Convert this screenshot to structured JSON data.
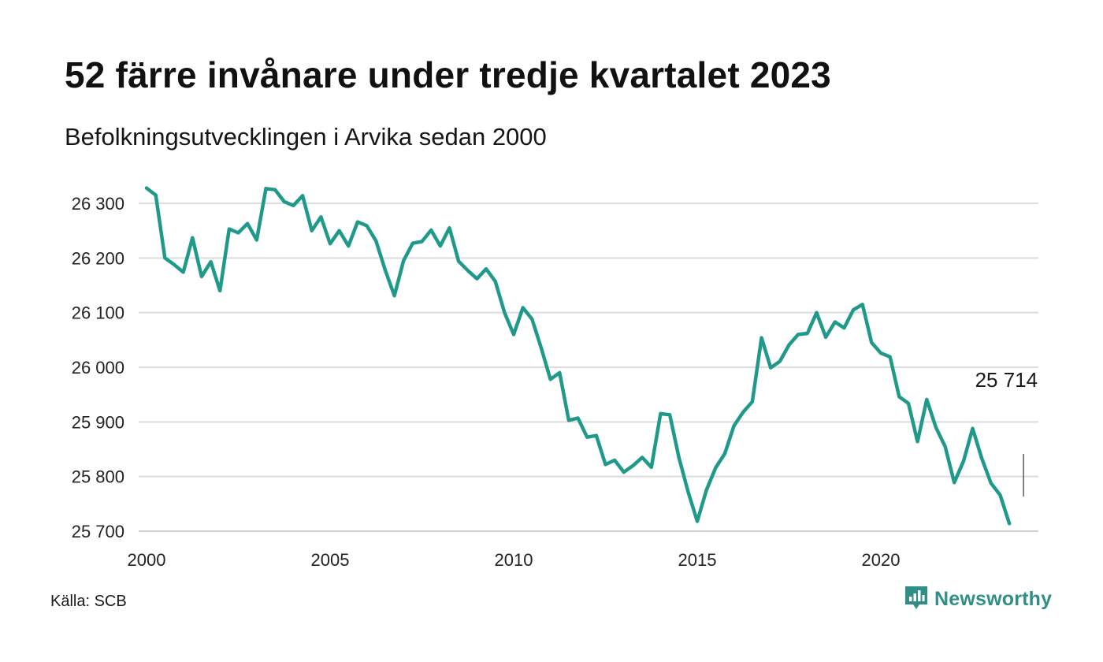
{
  "header": {
    "title": "52 färre invånare under tredje kvartalet 2023",
    "subtitle": "Befolkningsutvecklingen i Arvika sedan 2000"
  },
  "footer": {
    "source": "Källa: SCB",
    "brand": "Newsworthy",
    "brand_icon": "newsworthy-logo-icon"
  },
  "colors": {
    "line": "#1f9a8a",
    "grid": "#dcdcdc",
    "brand": "#2f8f87",
    "text": "#111111"
  },
  "chart_data": {
    "type": "line",
    "title": "52 färre invånare under tredje kvartalet 2023",
    "subtitle": "Befolkningsutvecklingen i Arvika sedan 2000",
    "xlabel": "",
    "ylabel": "",
    "x_ticks": [
      "2000",
      "2005",
      "2010",
      "2015",
      "2020"
    ],
    "x_tick_values": [
      2000,
      2005,
      2010,
      2015,
      2020
    ],
    "y_ticks": [
      "25 700",
      "25 800",
      "25 900",
      "26 000",
      "26 100",
      "26 200",
      "26 300"
    ],
    "y_tick_values": [
      25700,
      25800,
      25900,
      26000,
      26100,
      26200,
      26300
    ],
    "ylim": [
      25700,
      26300
    ],
    "xlim": [
      2000,
      2024
    ],
    "grid": "horizontal",
    "legend": "none",
    "last_value_label": "25 714",
    "series": [
      {
        "x": [
          2000.0,
          2000.25,
          2000.5,
          2000.75,
          2001.0,
          2001.25,
          2001.5,
          2001.75,
          2002.0,
          2002.25,
          2002.5,
          2002.75,
          2003.0,
          2003.25,
          2003.5,
          2003.75,
          2004.0,
          2004.25,
          2004.5,
          2004.75,
          2005.0,
          2005.25,
          2005.5,
          2005.75,
          2006.0,
          2006.25,
          2006.5,
          2006.75,
          2007.0,
          2007.25,
          2007.5,
          2007.75,
          2008.0,
          2008.25,
          2008.5,
          2008.75,
          2009.0,
          2009.25,
          2009.5,
          2009.75,
          2010.0,
          2010.25,
          2010.5,
          2010.75,
          2011.0,
          2011.25,
          2011.5,
          2011.75,
          2012.0,
          2012.25,
          2012.5,
          2012.75,
          2013.0,
          2013.25,
          2013.5,
          2013.75,
          2014.0,
          2014.25,
          2014.5,
          2014.75,
          2015.0,
          2015.25,
          2015.5,
          2015.75,
          2016.0,
          2016.25,
          2016.5,
          2016.75,
          2017.0,
          2017.25,
          2017.5,
          2017.75,
          2018.0,
          2018.25,
          2018.5,
          2018.75,
          2019.0,
          2019.25,
          2019.5,
          2019.75,
          2020.0,
          2020.25,
          2020.5,
          2020.75,
          2021.0,
          2021.25,
          2021.5,
          2021.75,
          2022.0,
          2022.25,
          2022.5,
          2022.75,
          2023.0,
          2023.25,
          2023.5
        ],
        "values": [
          26328,
          26315,
          26200,
          26188,
          26174,
          26237,
          26166,
          26193,
          26140,
          26253,
          26246,
          26263,
          26233,
          26327,
          26325,
          26303,
          26296,
          26314,
          26250,
          26275,
          26226,
          26250,
          26222,
          26266,
          26259,
          26231,
          26178,
          26131,
          26195,
          26227,
          26230,
          26251,
          26222,
          26255,
          26194,
          26177,
          26162,
          26180,
          26157,
          26100,
          26060,
          26109,
          26088,
          26035,
          25978,
          25990,
          25903,
          25907,
          25872,
          25875,
          25822,
          25830,
          25808,
          25820,
          25835,
          25817,
          25915,
          25913,
          25835,
          25772,
          25718,
          25775,
          25816,
          25842,
          25893,
          25918,
          25937,
          26054,
          25999,
          26011,
          26041,
          26060,
          26062,
          26100,
          26055,
          26083,
          26072,
          26105,
          26115,
          26045,
          26026,
          26019,
          25946,
          25934,
          25864,
          25941,
          25890,
          25855,
          25789,
          25828,
          25888,
          25833,
          25788,
          25766,
          25714
        ]
      }
    ]
  }
}
